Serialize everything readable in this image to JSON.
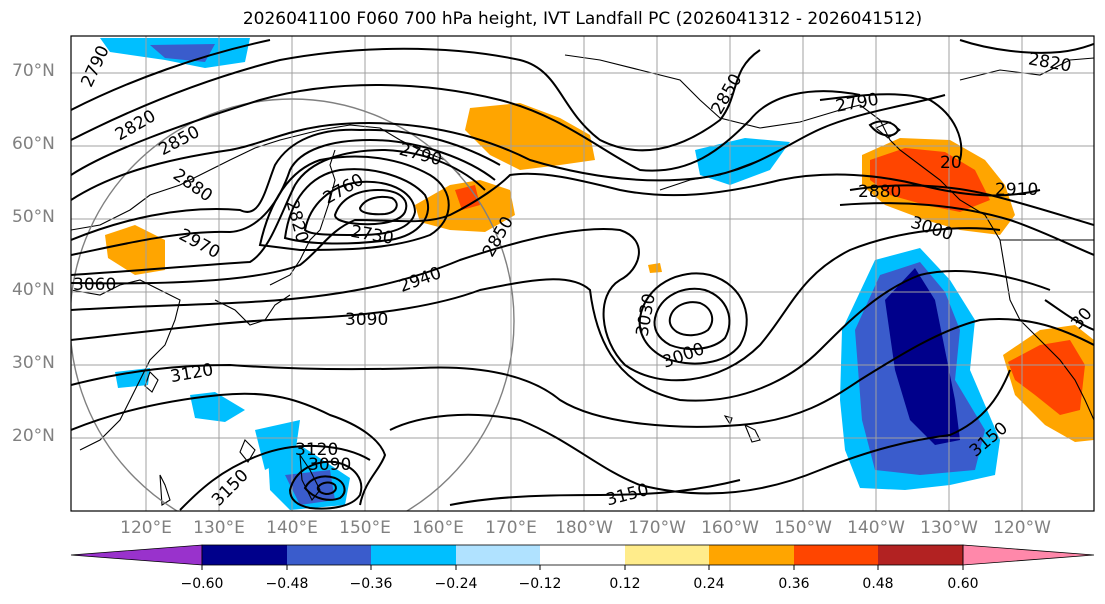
{
  "title": "2026041100 F060 700 hPa height, IVT Landfall PC (2026041312 - 2026041512)",
  "lat_labels": [
    "70°N",
    "60°N",
    "50°N",
    "40°N",
    "30°N",
    "20°N"
  ],
  "lon_labels": [
    "120°E",
    "130°E",
    "140°E",
    "150°E",
    "160°E",
    "170°E",
    "180°W",
    "170°W",
    "160°W",
    "150°W",
    "140°W",
    "130°W",
    "120°W"
  ],
  "contour_labels": [
    "2790",
    "2820",
    "2850",
    "2880",
    "2970",
    "3060",
    "2760",
    "2790",
    "2820",
    "2730",
    "2850",
    "2940",
    "3090",
    "3120",
    "3150",
    "3120",
    "3090",
    "3030",
    "3000",
    "3150",
    "2850",
    "2790",
    "2820",
    "2880",
    "2910",
    "20",
    "3000",
    "3150",
    "30"
  ],
  "colorbar": {
    "ticks": [
      "−0.60",
      "−0.48",
      "−0.36",
      "−0.24",
      "−0.12",
      "0.12",
      "0.24",
      "0.36",
      "0.48",
      "0.60"
    ],
    "colors": [
      "#9932cc",
      "#00008b",
      "#3a5ccc",
      "#00bfff",
      "#b0e2ff",
      "#ffffff",
      "#ffec8b",
      "#ffa500",
      "#ff4500",
      "#b22222",
      "#ff88aa"
    ]
  }
}
